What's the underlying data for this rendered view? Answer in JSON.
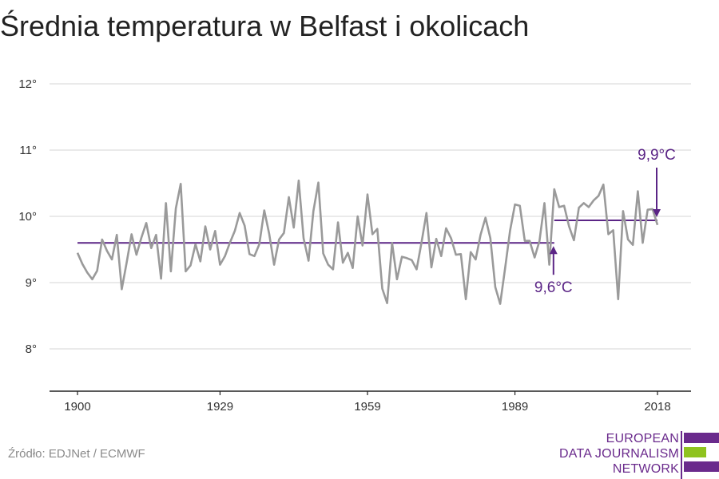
{
  "title": "Średnia temperatura w Belfast i okolicach",
  "source": "Źródło: EDJNet / ECMWF",
  "logo": {
    "lines": [
      "EUROPEAN",
      "DATA JOURNALISM",
      "NETWORK"
    ],
    "colors": {
      "purple": "#6a2a8c",
      "green": "#8fc31f"
    }
  },
  "colors": {
    "series": "#9a9a9a",
    "average": "#5b2586",
    "grid": "#dddddd",
    "axis": "#222222"
  },
  "chart_data": {
    "type": "line",
    "title": "Średnia temperatura w Belfast i okolicach",
    "xlabel": "",
    "ylabel": "",
    "xlim": [
      1900,
      2018
    ],
    "ylim": [
      7.4,
      12.2
    ],
    "x_ticks": [
      1900,
      1929,
      1959,
      1989,
      2018
    ],
    "y_ticks": [
      8,
      9,
      10,
      11,
      12
    ],
    "y_tick_labels": [
      "8°",
      "9°",
      "10°",
      "11°",
      "12°"
    ],
    "grid": true,
    "series": [
      {
        "x": [
          1900,
          1901,
          1902,
          1903,
          1904,
          1905,
          1906,
          1907,
          1908,
          1909,
          1910,
          1911,
          1912,
          1913,
          1914,
          1915,
          1916,
          1917,
          1918,
          1919,
          1920,
          1921,
          1922,
          1923,
          1924,
          1925,
          1926,
          1927,
          1928,
          1929,
          1930,
          1931,
          1932,
          1933,
          1934,
          1935,
          1936,
          1937,
          1938,
          1939,
          1940,
          1941,
          1942,
          1943,
          1944,
          1945,
          1946,
          1947,
          1948,
          1949,
          1950,
          1951,
          1952,
          1953,
          1954,
          1955,
          1956,
          1957,
          1958,
          1959,
          1960,
          1961,
          1962,
          1963,
          1964,
          1965,
          1966,
          1967,
          1968,
          1969,
          1970,
          1971,
          1972,
          1973,
          1974,
          1975,
          1976,
          1977,
          1978,
          1979,
          1980,
          1981,
          1982,
          1983,
          1984,
          1985,
          1986,
          1987,
          1988,
          1989,
          1990,
          1991,
          1992,
          1993,
          1994,
          1995,
          1996,
          1997,
          1998,
          1999,
          2000,
          2001,
          2002,
          2003,
          2004,
          2005,
          2006,
          2007,
          2008,
          2009,
          2010,
          2011,
          2012,
          2013,
          2014,
          2015,
          2016,
          2017,
          2018
        ],
        "values": [
          9.45,
          9.28,
          9.15,
          9.05,
          9.18,
          9.65,
          9.48,
          9.35,
          9.72,
          8.9,
          9.3,
          9.73,
          9.42,
          9.68,
          9.9,
          9.52,
          9.72,
          9.06,
          10.2,
          9.17,
          10.12,
          10.49,
          9.17,
          9.26,
          9.58,
          9.32,
          9.85,
          9.5,
          9.78,
          9.27,
          9.4,
          9.6,
          9.78,
          10.05,
          9.86,
          9.43,
          9.4,
          9.58,
          10.09,
          9.74,
          9.27,
          9.65,
          9.75,
          10.29,
          9.83,
          10.54,
          9.67,
          9.33,
          10.08,
          10.51,
          9.44,
          9.27,
          9.2,
          9.91,
          9.3,
          9.45,
          9.22,
          10.0,
          9.56,
          10.33,
          9.73,
          9.81,
          8.91,
          8.69,
          9.6,
          9.05,
          9.39,
          9.37,
          9.34,
          9.2,
          9.61,
          10.05,
          9.23,
          9.66,
          9.4,
          9.82,
          9.67,
          9.42,
          9.43,
          8.75,
          9.46,
          9.35,
          9.72,
          9.98,
          9.67,
          8.93,
          8.68,
          9.22,
          9.78,
          10.18,
          10.16,
          9.63,
          9.63,
          9.38,
          9.63,
          10.2,
          9.27,
          10.41,
          10.14,
          10.16,
          9.85,
          9.64,
          10.13,
          10.2,
          10.14,
          10.24,
          10.31,
          10.48,
          9.73,
          9.79,
          8.75,
          10.08,
          9.65,
          9.57,
          10.38,
          9.6,
          10.1,
          10.11,
          9.87
        ]
      },
      {
        "name": "average 1900-1996",
        "value": 9.6,
        "x_start": 1900,
        "x_end": 1997
      },
      {
        "name": "average 1997-2018",
        "value": 9.94,
        "x_start": 1997,
        "x_end": 2018
      }
    ],
    "annotations": [
      {
        "label": "9,6°C",
        "x": 1997,
        "y": 9.6
      },
      {
        "label": "9,9°C",
        "x": 2018,
        "y": 9.94
      }
    ]
  }
}
